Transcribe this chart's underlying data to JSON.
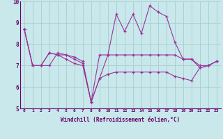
{
  "xlabel": "Windchill (Refroidissement éolien,°C)",
  "bg_color": "#c8e8ec",
  "line_color": "#993399",
  "grid_color": "#aacccc",
  "xlim": [
    -0.5,
    23.5
  ],
  "ylim": [
    5,
    10
  ],
  "yticks": [
    5,
    6,
    7,
    8,
    9,
    10
  ],
  "xticks": [
    0,
    1,
    2,
    3,
    4,
    5,
    6,
    7,
    8,
    9,
    10,
    11,
    12,
    13,
    14,
    15,
    16,
    17,
    18,
    19,
    20,
    21,
    22,
    23
  ],
  "series": [
    [
      8.7,
      7.0,
      7.0,
      7.0,
      7.6,
      7.5,
      7.3,
      7.1,
      5.3,
      6.4,
      7.5,
      9.4,
      8.6,
      9.4,
      8.5,
      9.8,
      9.5,
      9.3,
      8.1,
      7.3,
      7.3,
      6.9,
      7.0,
      7.2
    ],
    [
      8.7,
      7.0,
      7.0,
      7.6,
      7.5,
      7.5,
      7.4,
      7.2,
      5.3,
      7.5,
      7.5,
      7.5,
      7.5,
      7.5,
      7.5,
      7.5,
      7.5,
      7.5,
      7.5,
      7.3,
      7.3,
      7.0,
      7.0,
      7.2
    ],
    [
      8.7,
      7.0,
      7.0,
      7.6,
      7.5,
      7.3,
      7.1,
      7.0,
      5.3,
      6.4,
      6.6,
      6.7,
      6.7,
      6.7,
      6.7,
      6.7,
      6.7,
      6.7,
      6.5,
      6.4,
      6.3,
      6.9,
      7.0,
      7.2
    ]
  ]
}
